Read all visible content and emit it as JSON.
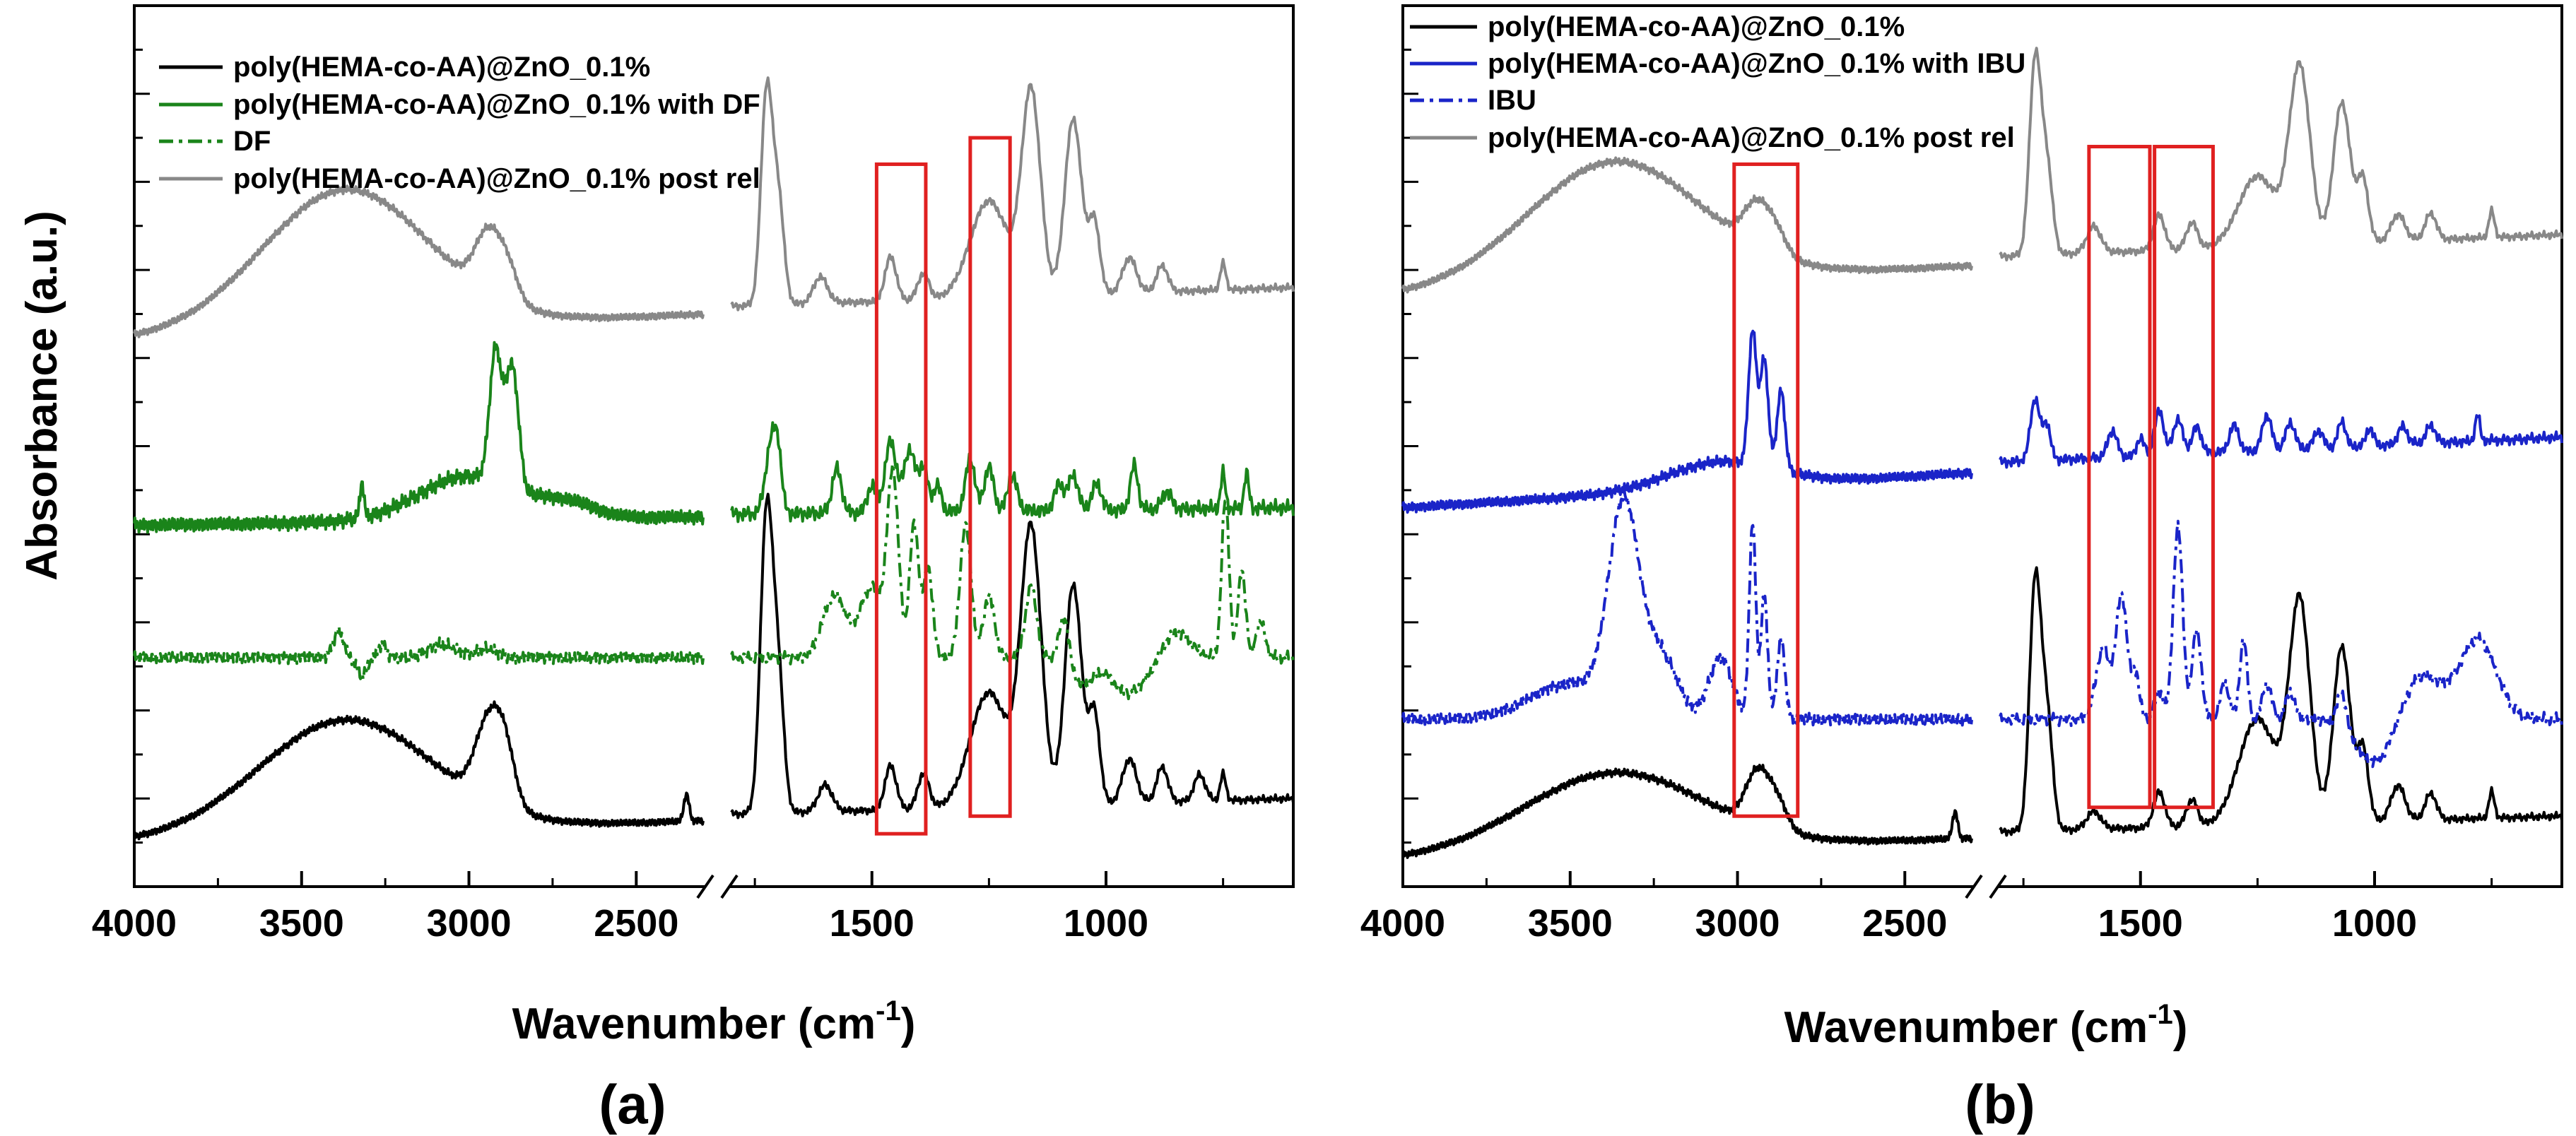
{
  "figure": {
    "panel_labels": [
      "(a)",
      "(b)"
    ]
  },
  "chart_data": [
    {
      "type": "line",
      "panel": "(a)",
      "xlabel": "Wavenumber (cm",
      "xlabel_sup": "-1",
      "xlabel_close": ")",
      "ylabel": "Absorbance (a.u.)",
      "xlim": [
        4000,
        600
      ],
      "axis_break": [
        2300,
        1800
      ],
      "x_ticks": [
        "4000",
        "3500",
        "3000",
        "2500",
        "1500",
        "1000"
      ],
      "x_tick_values": [
        4000,
        3500,
        3000,
        2500,
        1500,
        1000
      ],
      "ylim": [
        0,
        100
      ],
      "y_ticks_labeled": false,
      "legend": [
        "poly(HEMA-co-AA)@ZnO_0.1%",
        "poly(HEMA-co-AA)@ZnO_0.1% with DF",
        "DF",
        "poly(HEMA-co-AA)@ZnO_0.1% post rel"
      ],
      "highlight_boxes": [
        {
          "x": [
            1490,
            1385
          ],
          "y": [
            6,
            82
          ]
        },
        {
          "x": [
            1290,
            1205
          ],
          "y": [
            8,
            85
          ]
        }
      ],
      "series": [
        {
          "name": "poly(HEMA-co-AA)@ZnO_0.1%",
          "color": "#000000",
          "dash": "solid",
          "base": 5,
          "drift": 5,
          "noise": 0.25,
          "peaks": [
            [
              3370,
              13,
              260
            ],
            [
              2940,
              9,
              40
            ],
            [
              2890,
              5,
              30
            ],
            [
              2350,
              3,
              8
            ],
            [
              1725,
              34,
              13
            ],
            [
              1700,
              15,
              12
            ],
            [
              1600,
              3,
              15
            ],
            [
              1460,
              5,
              12
            ],
            [
              1390,
              4,
              12
            ],
            [
              1250,
              13,
              40
            ],
            [
              1160,
              31,
              22
            ],
            [
              1070,
              25,
              18
            ],
            [
              1025,
              10,
              12
            ],
            [
              950,
              5,
              15
            ],
            [
              880,
              4,
              12
            ],
            [
              800,
              3,
              12
            ],
            [
              750,
              3,
              6
            ]
          ]
        },
        {
          "name": "poly(HEMA-co-AA)@ZnO_0.1% with DF",
          "color": "#1a841a",
          "dash": "solid",
          "base": 41,
          "drift": 2,
          "noise": 0.5,
          "peaks": [
            [
              3320,
              4,
              6
            ],
            [
              3000,
              5,
              150
            ],
            [
              2920,
              15,
              18
            ],
            [
              2880,
              9,
              15
            ],
            [
              2860,
              8,
              15
            ],
            [
              2700,
              1.5,
              80
            ],
            [
              1715,
              8,
              12
            ],
            [
              1700,
              5,
              8
            ],
            [
              1575,
              5,
              10
            ],
            [
              1500,
              3,
              10
            ],
            [
              1460,
              8,
              12
            ],
            [
              1420,
              7,
              12
            ],
            [
              1390,
              5,
              10
            ],
            [
              1360,
              3,
              8
            ],
            [
              1290,
              6,
              10
            ],
            [
              1250,
              5,
              10
            ],
            [
              1200,
              4,
              10
            ],
            [
              1100,
              3,
              10
            ],
            [
              1070,
              4,
              10
            ],
            [
              1020,
              3,
              10
            ],
            [
              940,
              5,
              8
            ],
            [
              870,
              2,
              10
            ],
            [
              750,
              4,
              5
            ],
            [
              700,
              4,
              5
            ]
          ]
        },
        {
          "name": "DF",
          "color": "#1a841a",
          "dash": "20,8,5,8",
          "base": 26,
          "drift": 0,
          "noise": 0.4,
          "peaks": [
            [
              3390,
              3,
              15
            ],
            [
              3320,
              -2,
              15
            ],
            [
              3260,
              1.5,
              12
            ],
            [
              3080,
              1.5,
              40
            ],
            [
              2950,
              1,
              30
            ],
            [
              1580,
              7,
              25
            ],
            [
              1500,
              8,
              25
            ],
            [
              1455,
              20,
              12
            ],
            [
              1410,
              15,
              10
            ],
            [
              1380,
              10,
              10
            ],
            [
              1300,
              15,
              12
            ],
            [
              1250,
              7,
              12
            ],
            [
              1160,
              8,
              12
            ],
            [
              1090,
              5,
              10
            ],
            [
              1050,
              -3,
              20
            ],
            [
              950,
              -4,
              40
            ],
            [
              850,
              3,
              30
            ],
            [
              745,
              18,
              8
            ],
            [
              710,
              10,
              8
            ],
            [
              670,
              4,
              10
            ]
          ]
        },
        {
          "name": "poly(HEMA-co-AA)@ZnO_0.1% post rel",
          "color": "#888888",
          "dash": "solid",
          "base": 62,
          "drift": 6,
          "noise": 0.25,
          "peaks": [
            [
              3370,
              16,
              250
            ],
            [
              2940,
              7,
              40
            ],
            [
              2880,
              3,
              30
            ],
            [
              1725,
              24,
              12
            ],
            [
              1700,
              12,
              12
            ],
            [
              1610,
              3,
              15
            ],
            [
              1460,
              5,
              12
            ],
            [
              1390,
              3,
              12
            ],
            [
              1250,
              11,
              40
            ],
            [
              1160,
              23,
              20
            ],
            [
              1070,
              20,
              18
            ],
            [
              1025,
              8,
              12
            ],
            [
              950,
              4,
              15
            ],
            [
              880,
              3,
              12
            ],
            [
              750,
              3,
              6
            ]
          ]
        }
      ]
    },
    {
      "type": "line",
      "panel": "(b)",
      "xlabel": "Wavenumber (cm",
      "xlabel_sup": "-1",
      "xlabel_close": ")",
      "ylabel": "",
      "xlim": [
        4000,
        600
      ],
      "axis_break": [
        2300,
        1800
      ],
      "x_ticks": [
        "4000",
        "3500",
        "3000",
        "2500",
        "1500",
        "1000"
      ],
      "x_tick_values": [
        4000,
        3500,
        3000,
        2500,
        1500,
        1000
      ],
      "ylim": [
        0,
        100
      ],
      "y_ticks_labeled": false,
      "legend": [
        "poly(HEMA-co-AA)@ZnO_0.1%",
        "poly(HEMA-co-AA)@ZnO_0.1% with IBU",
        "IBU",
        "poly(HEMA-co-AA)@ZnO_0.1% post rel"
      ],
      "highlight_boxes": [
        {
          "x": [
            3010,
            2820
          ],
          "y": [
            8,
            82
          ]
        },
        {
          "x": [
            1610,
            1480
          ],
          "y": [
            9,
            84
          ]
        },
        {
          "x": [
            1470,
            1345
          ],
          "y": [
            9,
            84
          ]
        }
      ],
      "series": [
        {
          "name": "poly(HEMA-co-AA)@ZnO_0.1%",
          "color": "#000000",
          "dash": "solid",
          "base": 3,
          "drift": 5,
          "noise": 0.25,
          "peaks": [
            [
              3370,
              9,
              270
            ],
            [
              2940,
              6,
              35
            ],
            [
              2880,
              3,
              30
            ],
            [
              2350,
              3,
              8
            ],
            [
              1725,
              28,
              12
            ],
            [
              1700,
              13,
              12
            ],
            [
              1600,
              2,
              15
            ],
            [
              1460,
              4,
              12
            ],
            [
              1390,
              3,
              12
            ],
            [
              1250,
              12,
              40
            ],
            [
              1160,
              25,
              22
            ],
            [
              1070,
              20,
              18
            ],
            [
              1025,
              8,
              12
            ],
            [
              950,
              4,
              15
            ],
            [
              880,
              3,
              12
            ],
            [
              750,
              3,
              6
            ]
          ]
        },
        {
          "name": "poly(HEMA-co-AA)@ZnO_0.1% with IBU",
          "color": "#1a24c8",
          "dash": "solid",
          "base": 43,
          "drift": 8,
          "noise": 0.35,
          "peaks": [
            [
              3050,
              3,
              160
            ],
            [
              2955,
              15,
              12
            ],
            [
              2920,
              12,
              12
            ],
            [
              2870,
              9,
              12
            ],
            [
              1725,
              7,
              10
            ],
            [
              1700,
              4,
              8
            ],
            [
              1560,
              3,
              10
            ],
            [
              1500,
              2,
              8
            ],
            [
              1460,
              5,
              10
            ],
            [
              1420,
              4,
              10
            ],
            [
              1380,
              3,
              10
            ],
            [
              1300,
              3,
              10
            ],
            [
              1230,
              4,
              10
            ],
            [
              1180,
              3,
              10
            ],
            [
              1120,
              2,
              10
            ],
            [
              1070,
              3,
              8
            ],
            [
              1010,
              2,
              8
            ],
            [
              940,
              2,
              10
            ],
            [
              880,
              2,
              10
            ],
            [
              780,
              3,
              5
            ]
          ]
        },
        {
          "name": "IBU",
          "color": "#1a24c8",
          "dash": "20,8,5,8",
          "base": 19,
          "drift": 0,
          "noise": 0.4,
          "peaks": [
            [
              3500,
              4,
              120
            ],
            [
              3340,
              23,
              45
            ],
            [
              3230,
              7,
              50
            ],
            [
              3050,
              7,
              35
            ],
            [
              2955,
              22,
              10
            ],
            [
              2920,
              14,
              10
            ],
            [
              2870,
              9,
              12
            ],
            [
              1580,
              8,
              15
            ],
            [
              1540,
              14,
              12
            ],
            [
              1510,
              5,
              8
            ],
            [
              1460,
              3,
              10
            ],
            [
              1420,
              22,
              10
            ],
            [
              1380,
              10,
              10
            ],
            [
              1320,
              4,
              10
            ],
            [
              1280,
              9,
              8
            ],
            [
              1230,
              4,
              10
            ],
            [
              1180,
              3,
              10
            ],
            [
              1070,
              4,
              10
            ],
            [
              1000,
              -5,
              40
            ],
            [
              900,
              5,
              40
            ],
            [
              780,
              9,
              40
            ]
          ]
        },
        {
          "name": "poly(HEMA-co-AA)@ZnO_0.1% post rel",
          "color": "#888888",
          "dash": "solid",
          "base": 67,
          "drift": 7,
          "noise": 0.25,
          "peaks": [
            [
              3370,
              14,
              260
            ],
            [
              2940,
              5,
              40
            ],
            [
              2880,
              2,
              30
            ],
            [
              1725,
              22,
              12
            ],
            [
              1700,
              10,
              12
            ],
            [
              1600,
              3,
              15
            ],
            [
              1460,
              4,
              12
            ],
            [
              1390,
              3,
              12
            ],
            [
              1250,
              8,
              40
            ],
            [
              1160,
              20,
              22
            ],
            [
              1070,
              16,
              18
            ],
            [
              1025,
              7,
              12
            ],
            [
              950,
              3,
              15
            ],
            [
              880,
              3,
              12
            ],
            [
              750,
              3,
              6
            ]
          ]
        }
      ]
    }
  ]
}
